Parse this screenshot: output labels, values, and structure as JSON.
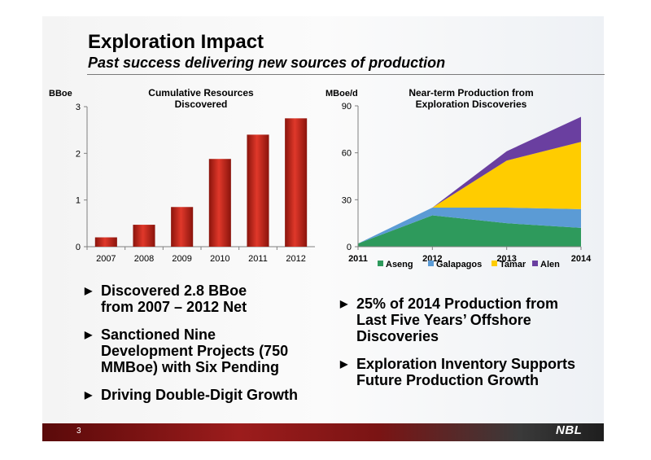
{
  "header": {
    "title": "Exploration Impact",
    "subtitle": "Past success delivering new sources of production"
  },
  "chart_data": [
    {
      "type": "bar",
      "title": "Cumulative Resources Discovered",
      "ylabel": "BBoe",
      "categories": [
        "2007",
        "2008",
        "2009",
        "2010",
        "2011",
        "2012"
      ],
      "values": [
        0.2,
        0.47,
        0.85,
        1.88,
        2.4,
        2.75
      ],
      "ylim": [
        0,
        3
      ],
      "yticks": [
        0,
        1,
        2,
        3
      ],
      "color": "#c0281e",
      "grid": false
    },
    {
      "type": "area",
      "stacked": true,
      "title": "Near-term Production from Exploration Discoveries",
      "ylabel": "MBoe/d",
      "x": [
        "2011",
        "2012",
        "2013",
        "2014"
      ],
      "ylim": [
        0,
        90
      ],
      "yticks": [
        0,
        30,
        60,
        90
      ],
      "legend_position": "bottom",
      "series": [
        {
          "name": "Aseng",
          "values": [
            2,
            20,
            15,
            12
          ],
          "color": "#2e9a5c"
        },
        {
          "name": "Galapagos",
          "values": [
            0,
            5,
            10,
            12
          ],
          "color": "#5b9bd5"
        },
        {
          "name": "Tamar",
          "values": [
            0,
            0,
            30,
            43
          ],
          "color": "#ffcc00"
        },
        {
          "name": "Alen",
          "values": [
            0,
            0,
            6,
            16
          ],
          "color": "#6a3fa0"
        }
      ]
    }
  ],
  "bullets_left": [
    "Discovered 2.8 BBoe\nfrom 2007 – 2012 Net",
    "Sanctioned Nine\nDevelopment Projects (750\nMMBoe) with Six Pending",
    "Driving Double-Digit Growth"
  ],
  "bullets_right": [
    "25% of 2014 Production from\nLast Five Years’ Offshore\nDiscoveries",
    "Exploration Inventory Supports\nFuture Production Growth"
  ],
  "footer": {
    "page_number": "3",
    "logo_text": "NBL"
  }
}
